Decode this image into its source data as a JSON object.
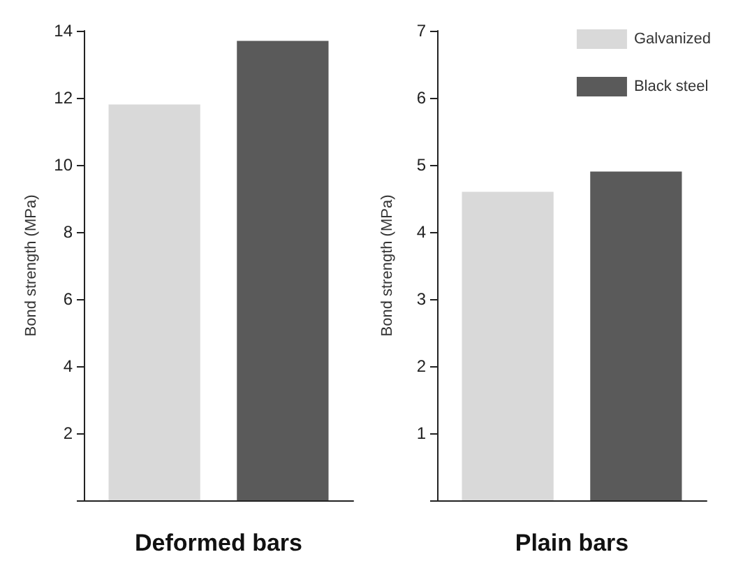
{
  "chart_data": [
    {
      "type": "bar",
      "xlabel": "Deformed bars",
      "ylabel": "Bond strength (MPa)",
      "categories": [
        null
      ],
      "series": [
        {
          "color": "#d9d9d9",
          "values": [
            11.8
          ]
        },
        {
          "color": "#5a5a5a",
          "values": [
            13.7
          ]
        }
      ],
      "ylim": [
        0,
        14
      ],
      "yticks": [
        {
          "value": 0,
          "label": null
        },
        2,
        4,
        6,
        8,
        10,
        12,
        14
      ],
      "legend": false,
      "grid": false
    },
    {
      "type": "bar",
      "xlabel": "Plain bars",
      "ylabel": "Bond strength (MPa)",
      "categories": [
        null
      ],
      "series": [
        {
          "name": "Galvanized",
          "color": "#d9d9d9",
          "values": [
            4.6
          ]
        },
        {
          "name": "Black steel",
          "color": "#5a5a5a",
          "values": [
            4.9
          ]
        }
      ],
      "ylim": [
        0,
        7
      ],
      "yticks": [
        {
          "value": 0,
          "label": null
        },
        1,
        2,
        3,
        4,
        5,
        6,
        7
      ],
      "legend": "top right",
      "grid": false
    }
  ]
}
